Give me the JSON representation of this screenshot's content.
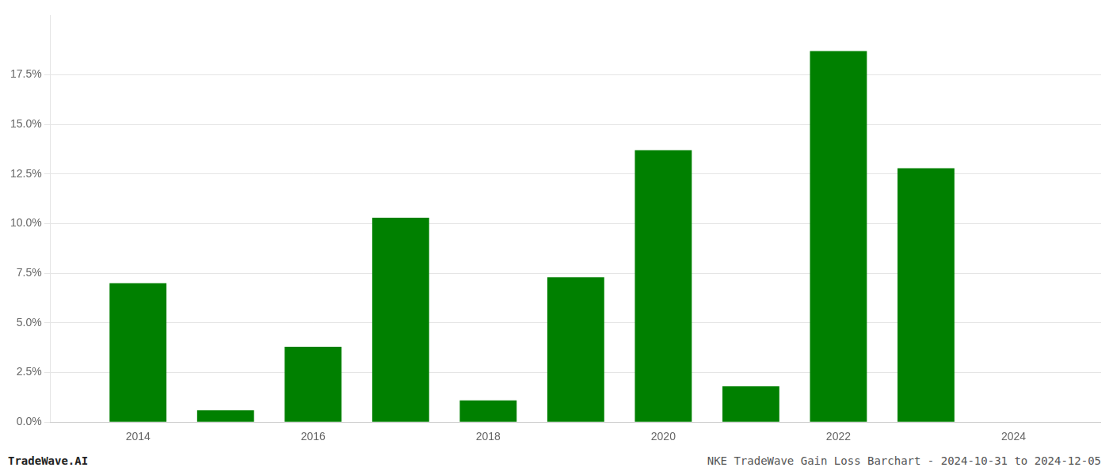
{
  "chart_data": {
    "type": "bar",
    "x": [
      2014,
      2015,
      2016,
      2017,
      2018,
      2019,
      2020,
      2021,
      2022,
      2023,
      2024
    ],
    "values": [
      0.07,
      0.006,
      0.038,
      0.103,
      0.011,
      0.073,
      0.137,
      0.018,
      0.187,
      0.128,
      0.0
    ],
    "color": "#008000",
    "xlim": [
      2013.0,
      2025.0
    ],
    "xticks": [
      2014,
      2016,
      2018,
      2020,
      2022,
      2024
    ],
    "ylim": [
      0,
      0.205
    ],
    "yticks": [
      {
        "value": 0.0,
        "label": "0.0%"
      },
      {
        "value": 0.025,
        "label": "2.5%"
      },
      {
        "value": 0.05,
        "label": "5.0%"
      },
      {
        "value": 0.075,
        "label": "7.5%"
      },
      {
        "value": 0.1,
        "label": "10.0%"
      },
      {
        "value": 0.125,
        "label": "12.5%"
      },
      {
        "value": 0.15,
        "label": "15.0%"
      },
      {
        "value": 0.175,
        "label": "17.5%"
      }
    ],
    "grid": "y",
    "annotations": [
      "TradeWave.AI",
      "NKE TradeWave Gain Loss Barchart - 2024-10-31 to 2024-12-05"
    ]
  }
}
